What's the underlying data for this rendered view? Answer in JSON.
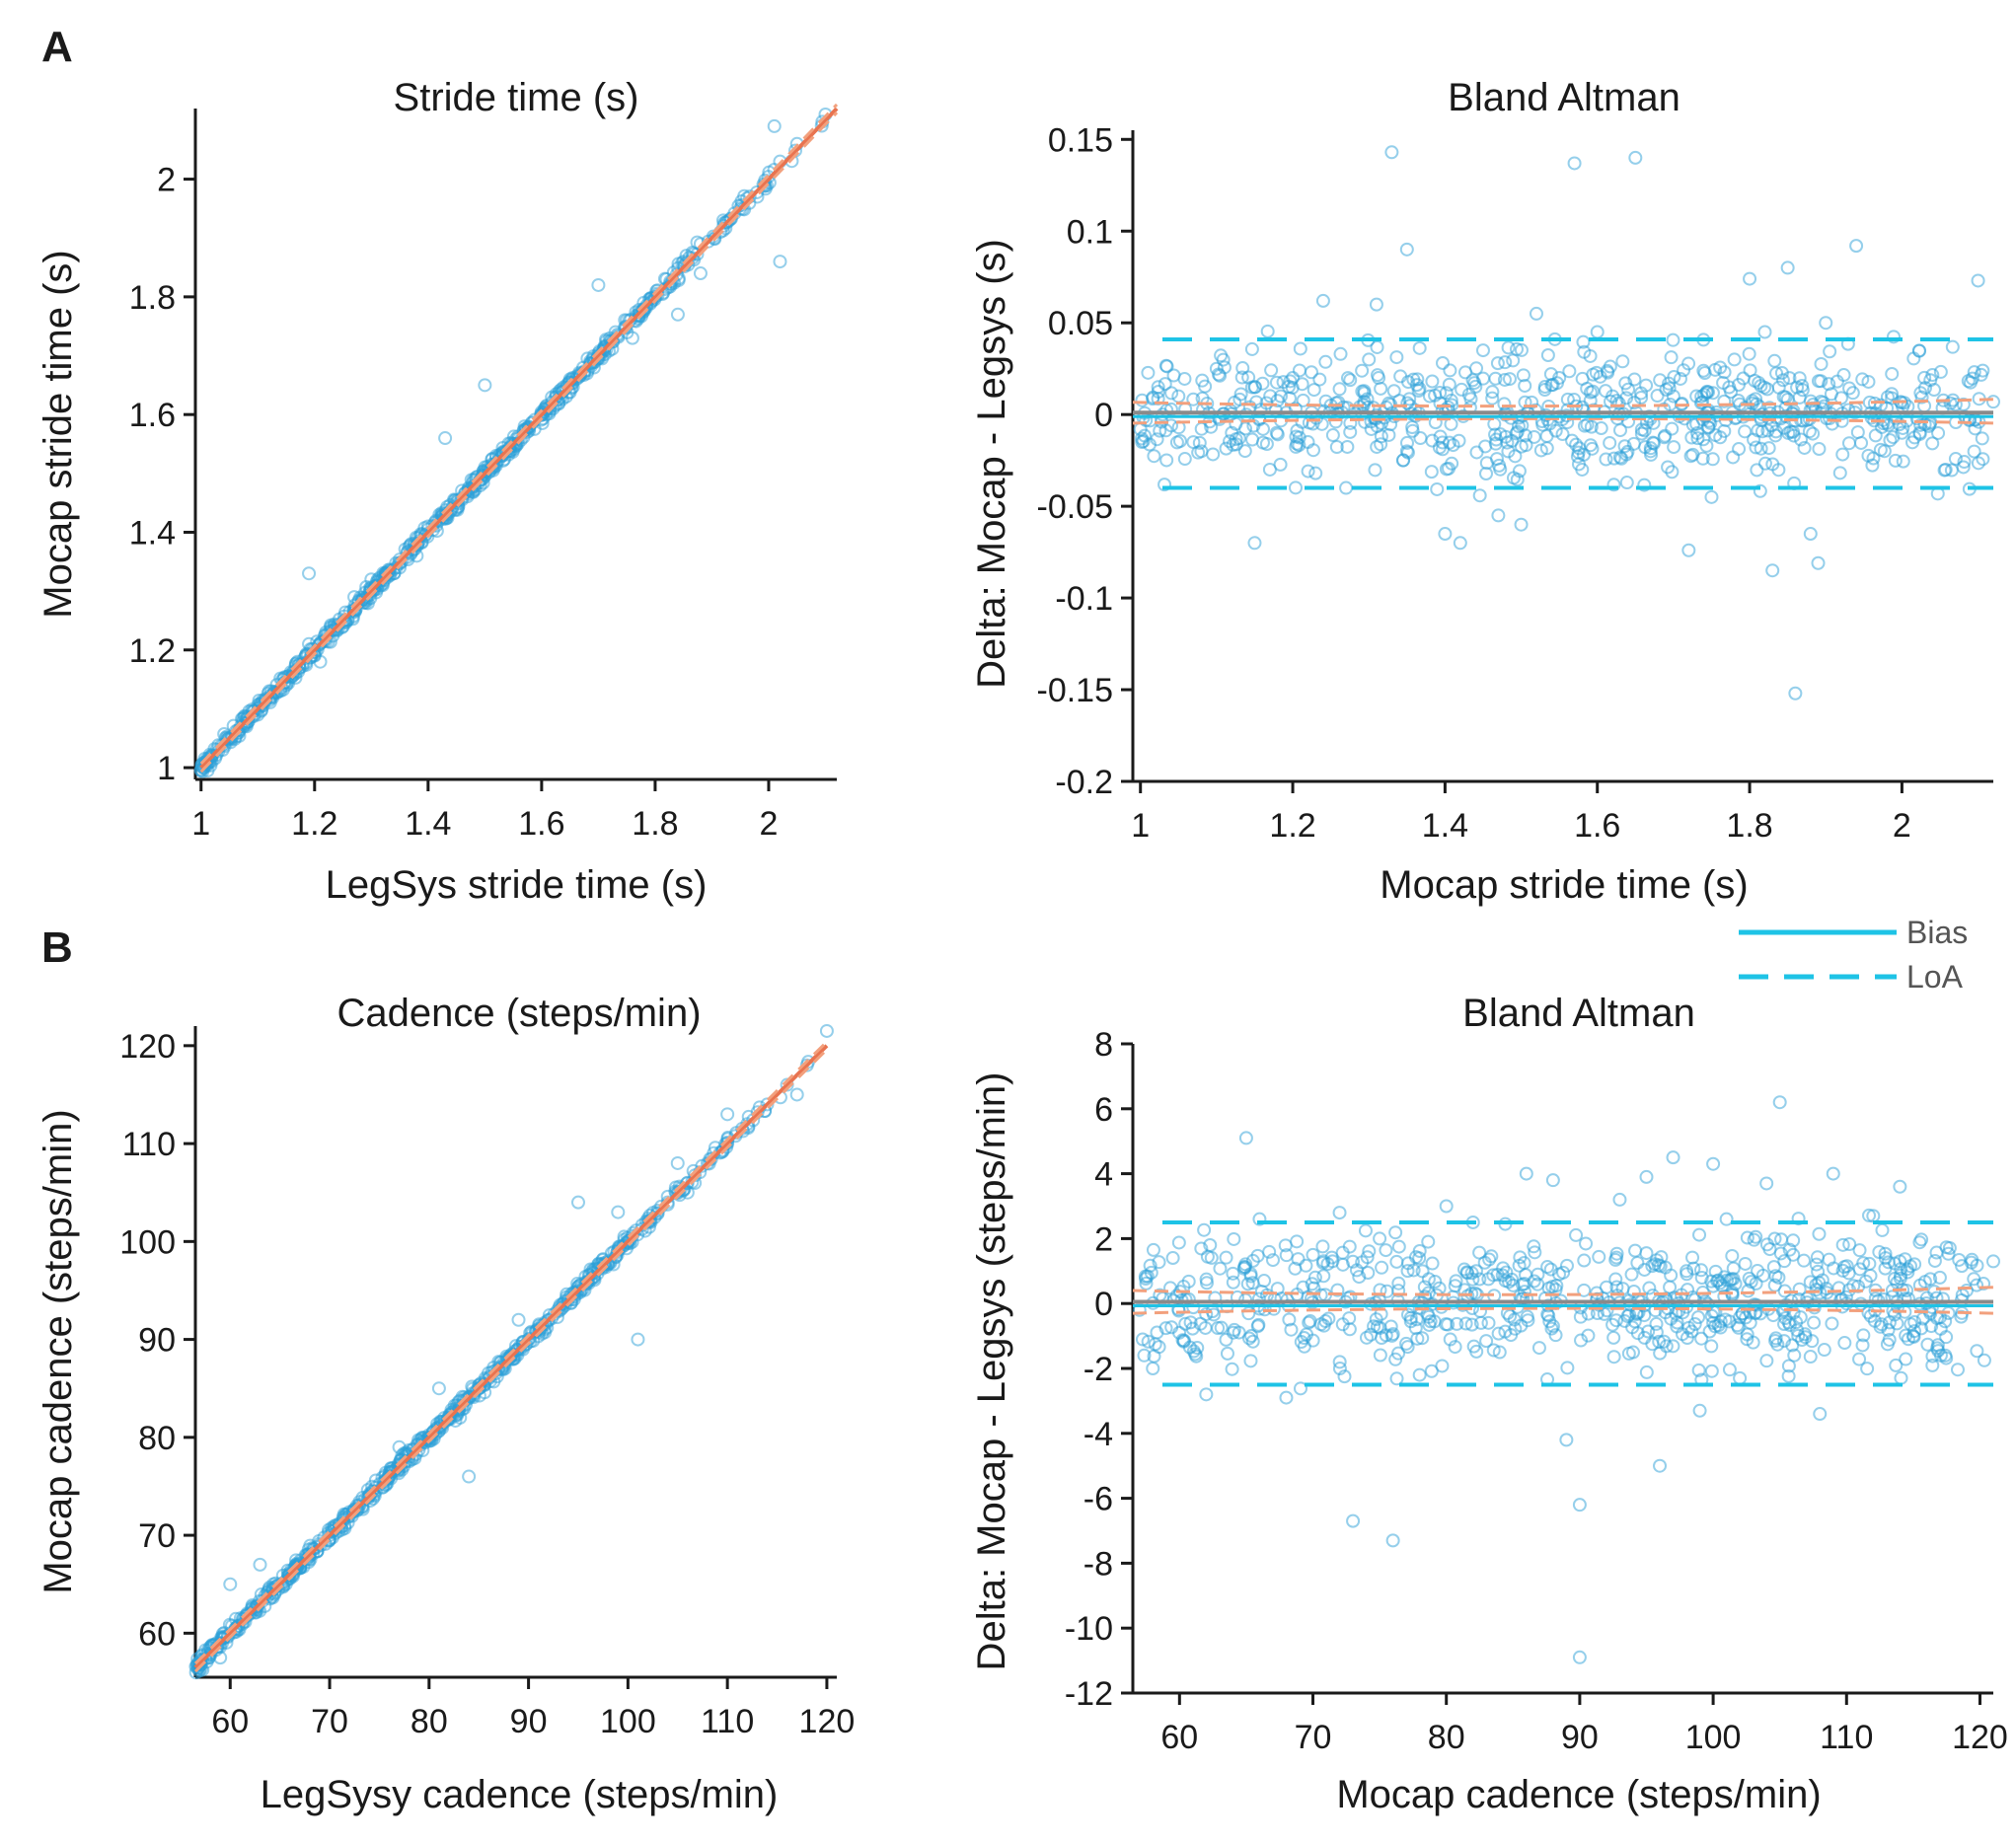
{
  "figure": {
    "panel_labels": [
      "A",
      "B"
    ],
    "colors": {
      "points": "#2b9fd8",
      "fit": "#e8734f",
      "ci": "#f2a07d",
      "bias": "#1ec3e6",
      "loa": "#1ec3e6",
      "bias_mean": "#8a8a8a",
      "axis": "#1a1a1a"
    },
    "legend": {
      "entries": [
        {
          "label": "Bias",
          "style": "solid"
        },
        {
          "label": "LoA",
          "style": "dashed"
        }
      ]
    }
  },
  "chart_data": [
    {
      "id": "stride-corr",
      "type": "scatter",
      "title": "Stride time (s)",
      "xlabel": "LegSys stride time (s)",
      "ylabel": "Mocap stride time (s)",
      "xlim": [
        0.99,
        2.12
      ],
      "ylim": [
        0.98,
        2.12
      ],
      "xticks": [
        1,
        1.2,
        1.4,
        1.6,
        1.8,
        2
      ],
      "xtick_labels": [
        "1",
        "1.2",
        "1.4",
        "1.6",
        "1.8",
        "2"
      ],
      "yticks": [
        1,
        1.2,
        1.4,
        1.6,
        1.8,
        2
      ],
      "ytick_labels": [
        "1",
        "1.2",
        "1.4",
        "1.6",
        "1.8",
        "2"
      ],
      "fit_line": {
        "slope": 1.0,
        "intercept": 0.0,
        "x_range": [
          1.0,
          2.12
        ]
      },
      "points": [
        [
          1.0,
          0.995
        ],
        [
          1.05,
          1.05
        ],
        [
          1.08,
          1.07
        ],
        [
          1.1,
          1.09
        ],
        [
          1.12,
          1.13
        ],
        [
          1.15,
          1.14
        ],
        [
          1.17,
          1.18
        ],
        [
          1.19,
          1.21
        ],
        [
          1.2,
          1.19
        ],
        [
          1.22,
          1.23
        ],
        [
          1.25,
          1.24
        ],
        [
          1.27,
          1.29
        ],
        [
          1.29,
          1.28
        ],
        [
          1.3,
          1.32
        ],
        [
          1.32,
          1.31
        ],
        [
          1.35,
          1.34
        ],
        [
          1.37,
          1.38
        ],
        [
          1.4,
          1.41
        ],
        [
          1.42,
          1.43
        ],
        [
          1.45,
          1.44
        ],
        [
          1.47,
          1.47
        ],
        [
          1.5,
          1.5
        ],
        [
          1.52,
          1.53
        ],
        [
          1.55,
          1.55
        ],
        [
          1.57,
          1.58
        ],
        [
          1.6,
          1.6
        ],
        [
          1.63,
          1.62
        ],
        [
          1.65,
          1.66
        ],
        [
          1.68,
          1.67
        ],
        [
          1.7,
          1.7
        ],
        [
          1.73,
          1.74
        ],
        [
          1.75,
          1.76
        ],
        [
          1.78,
          1.79
        ],
        [
          1.8,
          1.8
        ],
        [
          1.82,
          1.83
        ],
        [
          1.85,
          1.86
        ],
        [
          1.88,
          1.89
        ],
        [
          1.92,
          1.93
        ],
        [
          1.95,
          1.95
        ],
        [
          1.98,
          1.97
        ],
        [
          2.02,
          2.03
        ],
        [
          2.05,
          2.06
        ],
        [
          2.1,
          2.11
        ],
        [
          2.02,
          1.86
        ],
        [
          2.01,
          2.09
        ],
        [
          1.19,
          1.33
        ],
        [
          1.43,
          1.56
        ],
        [
          1.5,
          1.65
        ],
        [
          1.7,
          1.82
        ],
        [
          1.88,
          1.84
        ],
        [
          1.21,
          1.18
        ],
        [
          1.34,
          1.33
        ],
        [
          1.38,
          1.36
        ],
        [
          1.62,
          1.61
        ],
        [
          1.76,
          1.73
        ],
        [
          1.84,
          1.77
        ]
      ]
    },
    {
      "id": "stride-ba",
      "type": "scatter",
      "title": "Bland Altman",
      "xlabel": "Mocap stride time (s)",
      "ylabel": "Delta: Mocap - Legsys (s)",
      "xlim": [
        0.99,
        2.12
      ],
      "ylim": [
        -0.2,
        0.155
      ],
      "xticks": [
        1,
        1.2,
        1.4,
        1.6,
        1.8,
        2
      ],
      "xtick_labels": [
        "1",
        "1.2",
        "1.4",
        "1.6",
        "1.8",
        "2"
      ],
      "yticks": [
        0.15,
        0.1,
        0.05,
        0,
        -0.05,
        -0.1,
        -0.15,
        -0.2
      ],
      "ytick_labels": [
        "0.15",
        "0.1",
        "0.05",
        "0",
        "-0.05",
        "-0.1",
        "-0.15",
        "-0.2"
      ],
      "bias": 0.001,
      "loa": [
        0.041,
        -0.04
      ],
      "points": [
        [
          1.0,
          -0.008
        ],
        [
          1.05,
          0.01
        ],
        [
          1.08,
          -0.02
        ],
        [
          1.1,
          0.025
        ],
        [
          1.12,
          -0.01
        ],
        [
          1.15,
          0.015
        ],
        [
          1.15,
          -0.07
        ],
        [
          1.17,
          -0.03
        ],
        [
          1.2,
          0.02
        ],
        [
          1.22,
          -0.015
        ],
        [
          1.24,
          0.062
        ],
        [
          1.25,
          0.005
        ],
        [
          1.27,
          -0.04
        ],
        [
          1.3,
          0.03
        ],
        [
          1.31,
          0.06
        ],
        [
          1.33,
          0.143
        ],
        [
          1.35,
          0.09
        ],
        [
          1.35,
          -0.02
        ],
        [
          1.38,
          0.01
        ],
        [
          1.4,
          -0.065
        ],
        [
          1.42,
          -0.07
        ],
        [
          1.45,
          0.035
        ],
        [
          1.47,
          -0.055
        ],
        [
          1.5,
          -0.06
        ],
        [
          1.52,
          0.055
        ],
        [
          1.55,
          0.02
        ],
        [
          1.57,
          0.137
        ],
        [
          1.58,
          -0.03
        ],
        [
          1.6,
          0.045
        ],
        [
          1.62,
          0.01
        ],
        [
          1.65,
          0.14
        ],
        [
          1.67,
          -0.02
        ],
        [
          1.7,
          0.01
        ],
        [
          1.72,
          -0.074
        ],
        [
          1.75,
          -0.045
        ],
        [
          1.78,
          0.03
        ],
        [
          1.8,
          0.074
        ],
        [
          1.82,
          0.045
        ],
        [
          1.83,
          -0.085
        ],
        [
          1.85,
          0.08
        ],
        [
          1.86,
          -0.152
        ],
        [
          1.88,
          -0.065
        ],
        [
          1.89,
          -0.081
        ],
        [
          1.9,
          0.05
        ],
        [
          1.94,
          0.092
        ],
        [
          2.0,
          -0.01
        ],
        [
          2.1,
          0.073
        ],
        [
          2.12,
          0.007
        ]
      ]
    },
    {
      "id": "cadence-corr",
      "type": "scatter",
      "title": "Cadence (steps/min)",
      "xlabel": "LegSysy cadence (steps/min)",
      "ylabel": "Mocap cadence (steps/min)",
      "xlim": [
        56.5,
        121
      ],
      "ylim": [
        55.5,
        122
      ],
      "xticks": [
        60,
        70,
        80,
        90,
        100,
        110,
        120
      ],
      "xtick_labels": [
        "60",
        "70",
        "80",
        "90",
        "100",
        "110",
        "120"
      ],
      "yticks": [
        60,
        70,
        80,
        90,
        100,
        110,
        120
      ],
      "ytick_labels": [
        "60",
        "70",
        "80",
        "90",
        "100",
        "110",
        "120"
      ],
      "fit_line": {
        "slope": 1.0,
        "intercept": 0.0,
        "x_range": [
          56.5,
          120
        ]
      },
      "points": [
        [
          57,
          57
        ],
        [
          59,
          57.5
        ],
        [
          60,
          60
        ],
        [
          62,
          62
        ],
        [
          64,
          64
        ],
        [
          66,
          66
        ],
        [
          68,
          68
        ],
        [
          70,
          70
        ],
        [
          72,
          72
        ],
        [
          74,
          74
        ],
        [
          76,
          76
        ],
        [
          78,
          78
        ],
        [
          80,
          80
        ],
        [
          82,
          82
        ],
        [
          84,
          84
        ],
        [
          86,
          86
        ],
        [
          88,
          88
        ],
        [
          90,
          90
        ],
        [
          92,
          92
        ],
        [
          94,
          94
        ],
        [
          96,
          96
        ],
        [
          98,
          98
        ],
        [
          100,
          100
        ],
        [
          102,
          102
        ],
        [
          104,
          104
        ],
        [
          106,
          106
        ],
        [
          108,
          108
        ],
        [
          110,
          110
        ],
        [
          112,
          112
        ],
        [
          114,
          114
        ],
        [
          116,
          116
        ],
        [
          118,
          118
        ],
        [
          120,
          121.5
        ],
        [
          60,
          65
        ],
        [
          63,
          67
        ],
        [
          73,
          73
        ],
        [
          84,
          76
        ],
        [
          101,
          90
        ],
        [
          105,
          108
        ],
        [
          106,
          105
        ],
        [
          110,
          113
        ],
        [
          117,
          115
        ],
        [
          95,
          104
        ],
        [
          99,
          103
        ],
        [
          89,
          92
        ],
        [
          81,
          85
        ],
        [
          77,
          79
        ]
      ]
    },
    {
      "id": "cadence-ba",
      "type": "scatter",
      "title": "Bland Altman",
      "xlabel": "Mocap cadence (steps/min)",
      "ylabel": "Delta: Mocap - Legsys (steps/min)",
      "xlim": [
        56.5,
        121
      ],
      "ylim": [
        -12,
        8
      ],
      "xticks": [
        60,
        70,
        80,
        90,
        100,
        110,
        120
      ],
      "xtick_labels": [
        "60",
        "70",
        "80",
        "90",
        "100",
        "110",
        "120"
      ],
      "yticks": [
        8,
        6,
        4,
        2,
        0,
        -2,
        -4,
        -6,
        -8,
        -10,
        -12
      ],
      "ytick_labels": [
        "8",
        "6",
        "4",
        "2",
        "0",
        "-2",
        "-4",
        "-6",
        "-8",
        "-10",
        "-12"
      ],
      "bias": 0.05,
      "loa": [
        2.5,
        -2.5
      ],
      "points": [
        [
          57,
          -0.2
        ],
        [
          58,
          -2
        ],
        [
          62,
          -2.8
        ],
        [
          65,
          5.1
        ],
        [
          66,
          2.6
        ],
        [
          68,
          -2.9
        ],
        [
          70,
          1.5
        ],
        [
          72,
          2.8
        ],
        [
          73,
          -6.7
        ],
        [
          75,
          2
        ],
        [
          76,
          -7.3
        ],
        [
          78,
          -2.2
        ],
        [
          80,
          3
        ],
        [
          82,
          2.5
        ],
        [
          84,
          -1.5
        ],
        [
          86,
          4
        ],
        [
          88,
          3.8
        ],
        [
          89,
          -4.2
        ],
        [
          90,
          -6.2
        ],
        [
          90,
          -10.9
        ],
        [
          92,
          0.5
        ],
        [
          93,
          3.2
        ],
        [
          94,
          -1.5
        ],
        [
          95,
          3.9
        ],
        [
          96,
          -5
        ],
        [
          97,
          4.5
        ],
        [
          98,
          1
        ],
        [
          99,
          -3.3
        ],
        [
          100,
          4.3
        ],
        [
          101,
          2.6
        ],
        [
          102,
          -2.3
        ],
        [
          103,
          -1.2
        ],
        [
          104,
          3.7
        ],
        [
          105,
          6.2
        ],
        [
          106,
          1.5
        ],
        [
          108,
          -3.4
        ],
        [
          109,
          4
        ],
        [
          110,
          0
        ],
        [
          112,
          2.7
        ],
        [
          114,
          1.3
        ],
        [
          114,
          3.6
        ],
        [
          115,
          -1
        ],
        [
          117,
          0.8
        ],
        [
          119,
          0.4
        ],
        [
          121,
          1.3
        ]
      ]
    }
  ]
}
